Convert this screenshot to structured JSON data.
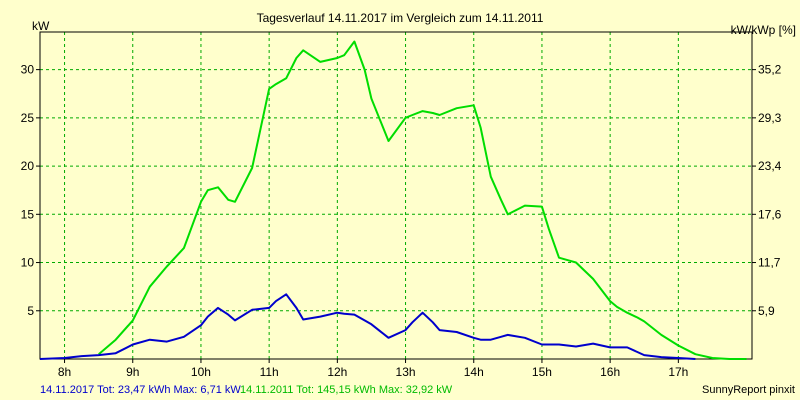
{
  "chart_data": {
    "type": "line",
    "title": "Tagesverlauf 14.11.2017 im Vergleich zum 14.11.2011",
    "ylabel_left": "kW",
    "ylabel_right": "kW/kWp [%]",
    "x_range": [
      7.64,
      18.08
    ],
    "x_ticks": [
      8,
      9,
      10,
      11,
      12,
      13,
      14,
      15,
      16,
      17
    ],
    "x_tick_labels": [
      "8h",
      "9h",
      "10h",
      "11h",
      "12h",
      "13h",
      "14h",
      "15h",
      "16h",
      "17h"
    ],
    "y_range": [
      0,
      33.9
    ],
    "y_ticks": [
      5,
      10,
      15,
      20,
      25,
      30
    ],
    "y_tick_labels": [
      "5",
      "10",
      "15",
      "20",
      "25",
      "30"
    ],
    "y_right_tick_labels": [
      "5,9",
      "11,7",
      "17,6",
      "23,4",
      "29,3",
      "35,2"
    ],
    "grid": true,
    "series": [
      {
        "name": "14.11.2017",
        "color": "#0000cc",
        "x": [
          7.64,
          8.0,
          8.25,
          8.5,
          8.75,
          9.0,
          9.25,
          9.5,
          9.75,
          10.0,
          10.1,
          10.25,
          10.4,
          10.5,
          10.75,
          11.0,
          11.1,
          11.25,
          11.4,
          11.5,
          11.75,
          12.0,
          12.1,
          12.25,
          12.4,
          12.5,
          12.75,
          13.0,
          13.1,
          13.25,
          13.4,
          13.5,
          13.75,
          14.0,
          14.1,
          14.25,
          14.4,
          14.5,
          14.75,
          15.0,
          15.25,
          15.5,
          15.75,
          16.0,
          16.25,
          16.5,
          16.75,
          17.0,
          17.25
        ],
        "y": [
          0.0,
          0.1,
          0.3,
          0.4,
          0.6,
          1.5,
          2.0,
          1.8,
          2.3,
          3.5,
          4.4,
          5.3,
          4.6,
          4.0,
          5.1,
          5.3,
          6.0,
          6.71,
          5.3,
          4.1,
          4.4,
          4.8,
          4.7,
          4.6,
          4.0,
          3.6,
          2.2,
          3.0,
          3.8,
          4.8,
          3.8,
          3.0,
          2.8,
          2.2,
          2.0,
          2.0,
          2.3,
          2.5,
          2.2,
          1.5,
          1.5,
          1.3,
          1.6,
          1.2,
          1.2,
          0.4,
          0.2,
          0.1,
          0.0
        ]
      },
      {
        "name": "14.11.2011",
        "color": "#00dd00",
        "x": [
          8.5,
          8.75,
          9.0,
          9.25,
          9.5,
          9.75,
          10.0,
          10.1,
          10.25,
          10.4,
          10.5,
          10.75,
          11.0,
          11.1,
          11.25,
          11.4,
          11.5,
          11.75,
          12.0,
          12.1,
          12.25,
          12.4,
          12.5,
          12.75,
          13.0,
          13.1,
          13.25,
          13.4,
          13.5,
          13.75,
          14.0,
          14.1,
          14.25,
          14.4,
          14.5,
          14.75,
          15.0,
          15.1,
          15.25,
          15.4,
          15.5,
          15.75,
          16.0,
          16.1,
          16.25,
          16.4,
          16.5,
          16.75,
          17.0,
          17.25,
          17.5,
          17.75,
          18.0
        ],
        "y": [
          0.5,
          2.0,
          4.0,
          7.5,
          9.6,
          11.5,
          16.3,
          17.5,
          17.8,
          16.5,
          16.3,
          19.8,
          28.0,
          28.5,
          29.1,
          31.2,
          32.0,
          30.8,
          31.2,
          31.5,
          32.92,
          30.0,
          27.0,
          22.6,
          25.0,
          25.3,
          25.7,
          25.5,
          25.3,
          26.0,
          26.3,
          24.0,
          18.9,
          16.5,
          15.0,
          15.9,
          15.8,
          13.5,
          10.5,
          10.2,
          10.0,
          8.3,
          6.0,
          5.4,
          4.8,
          4.3,
          3.9,
          2.5,
          1.4,
          0.5,
          0.1,
          0.0,
          0.0
        ]
      }
    ]
  },
  "footer": {
    "left_blue": "14.11.2017 Tot: 23,47 kWh Max: 6,71 kW",
    "left_green": "14.11.2011 Tot: 145,15 kWh Max: 32,92 kW",
    "credit": "SunnyReport pinxit"
  }
}
